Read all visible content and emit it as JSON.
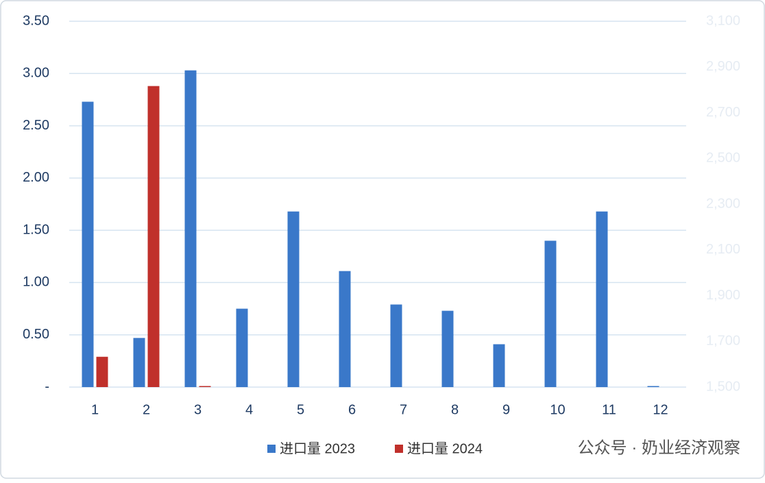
{
  "chart_data": {
    "type": "bar",
    "categories": [
      "1",
      "2",
      "3",
      "4",
      "5",
      "6",
      "7",
      "8",
      "9",
      "10",
      "11",
      "12"
    ],
    "series": [
      {
        "name": "进口量 2023",
        "color": "#3a78c9",
        "values": [
          2.73,
          0.47,
          3.03,
          0.75,
          1.68,
          1.11,
          0.79,
          0.73,
          0.41,
          1.4,
          1.68,
          0.01
        ]
      },
      {
        "name": "进口量 2024",
        "color": "#c0302b",
        "values": [
          0.29,
          2.88,
          0.01,
          null,
          null,
          null,
          null,
          null,
          null,
          null,
          null,
          null
        ]
      }
    ],
    "ylim": [
      0,
      3.5
    ],
    "yticks": [
      {
        "value": 0,
        "label": "-"
      },
      {
        "value": 0.5,
        "label": "0.50"
      },
      {
        "value": 1,
        "label": "1.00"
      },
      {
        "value": 1.5,
        "label": "1.50"
      },
      {
        "value": 2,
        "label": "2.00"
      },
      {
        "value": 2.5,
        "label": "2.50"
      },
      {
        "value": 3,
        "label": "3.00"
      },
      {
        "value": 3.5,
        "label": "3.50"
      }
    ],
    "y2lim": [
      1500,
      3100
    ],
    "y2ticks": [
      {
        "value": 1500,
        "label": "1,500"
      },
      {
        "value": 1700,
        "label": "1,700"
      },
      {
        "value": 1900,
        "label": "1,900"
      },
      {
        "value": 2100,
        "label": "2,100"
      },
      {
        "value": 2300,
        "label": "2,300"
      },
      {
        "value": 2500,
        "label": "2,500"
      },
      {
        "value": 2700,
        "label": "2,700"
      },
      {
        "value": 2900,
        "label": "2,900"
      },
      {
        "value": 3100,
        "label": "3,100"
      }
    ],
    "grid": true,
    "legend": "bottom",
    "watermark": "公众号 · 奶业经济观察"
  }
}
